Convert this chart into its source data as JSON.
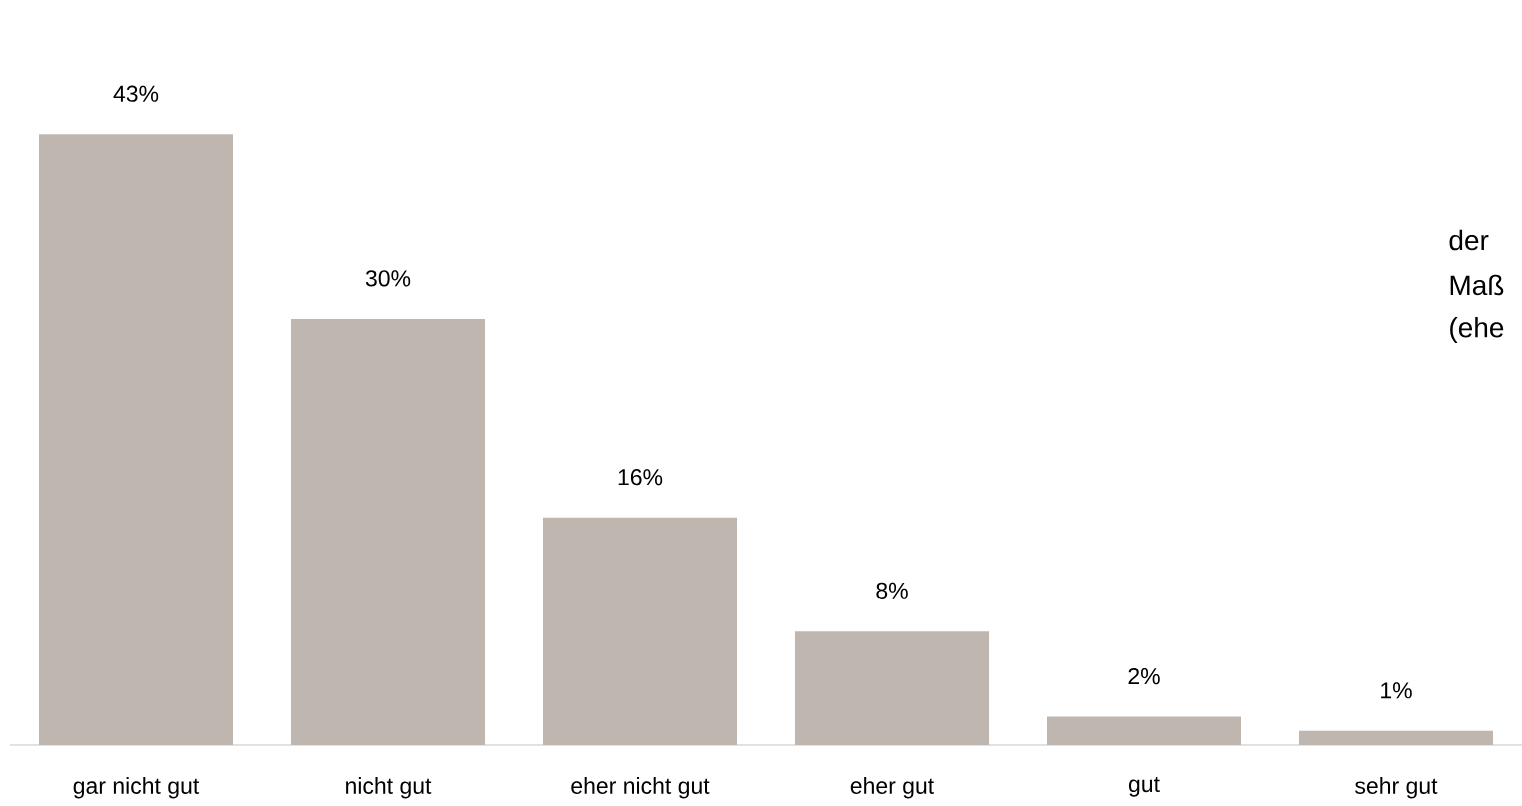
{
  "chart_data": {
    "type": "bar",
    "categories": [
      "gar nicht gut",
      "nicht gut",
      "eher nicht gut",
      "eher gut",
      "gut",
      "sehr gut"
    ],
    "values": [
      43,
      30,
      16,
      8,
      2,
      1
    ],
    "value_labels": [
      "43%",
      "30%",
      "16%",
      "8%",
      "2%",
      "1%"
    ],
    "color": "#c0b6b0",
    "annotations": [
      "der",
      "Maß",
      "(ehe"
    ]
  }
}
